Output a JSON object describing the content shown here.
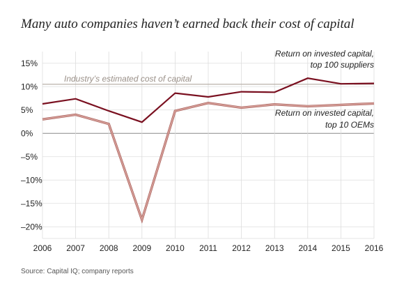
{
  "title": "Many auto companies haven’t earned back their cost of capital",
  "source": "Source: Capital IQ; company reports",
  "colors": {
    "suppliers": "#7a1020",
    "oems": "#d29a94",
    "cost_line": "#b8b0a8",
    "zero_line": "#888888",
    "grid": "#dddddd",
    "cost_label": "#9a9088"
  },
  "chart_data": {
    "type": "line",
    "x": [
      "2006",
      "2007",
      "2008",
      "2009",
      "2010",
      "2011",
      "2012",
      "2013",
      "2014",
      "2015",
      "2016"
    ],
    "series": [
      {
        "name": "Return on invested capital, top 100 suppliers",
        "label_lines": [
          "Return on invested capital,",
          "top 100 suppliers"
        ],
        "values": [
          6.3,
          7.4,
          4.8,
          2.4,
          8.6,
          7.8,
          8.9,
          8.8,
          11.8,
          10.6,
          10.7
        ]
      },
      {
        "name": "Return on invested capital, top 10 OEMs",
        "label_lines": [
          "Return on invested capital,",
          "top 10 OEMs"
        ],
        "values": [
          3.0,
          4.0,
          2.0,
          -18.5,
          4.8,
          6.5,
          5.5,
          6.2,
          5.8,
          6.1,
          6.4
        ]
      }
    ],
    "reference_line": {
      "label": "Industry’s estimated cost of capital",
      "value": 10.5
    },
    "y_ticks": [
      15,
      10,
      5,
      0,
      -5,
      -10,
      -15,
      -20
    ],
    "y_tick_labels": [
      "15%",
      "10%",
      "5%",
      "0%",
      "–5%",
      "–10%",
      "–15%",
      "–20%"
    ],
    "ylim": [
      -22.5,
      17.5
    ],
    "grid": true,
    "legend": "inline labels"
  }
}
